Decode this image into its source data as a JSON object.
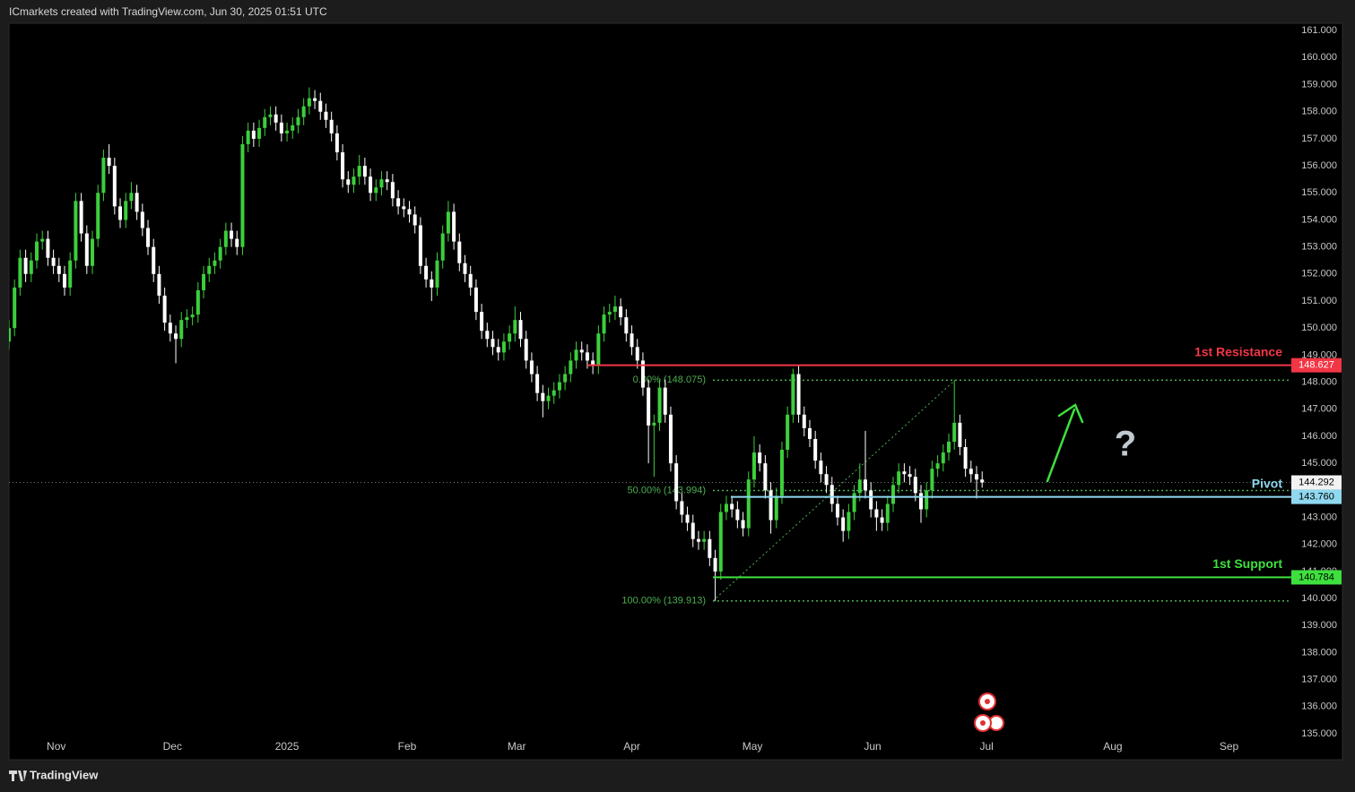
{
  "header": "ICmarkets created with TradingView.com, Jun 30, 2025 01:51 UTC",
  "footer": "TradingView",
  "chart_data": {
    "type": "candlestick",
    "up_color": "#3ccf3c",
    "down_color": "#ffffff",
    "grid": false,
    "x": [
      0,
      1,
      2,
      3,
      4,
      5,
      6,
      7,
      8,
      9,
      10,
      11,
      12,
      13,
      14,
      15,
      16,
      17,
      18,
      19,
      20,
      21,
      22,
      23,
      24,
      25,
      26,
      27,
      28,
      29,
      30,
      31,
      32,
      33,
      34,
      35,
      36,
      37,
      38,
      39,
      40,
      41,
      42,
      43,
      44,
      45,
      46,
      47,
      48,
      49,
      50,
      51,
      52,
      53,
      54,
      55,
      56,
      57,
      58,
      59,
      60,
      61,
      62,
      63,
      64,
      65,
      66,
      67,
      68,
      69,
      70,
      71,
      72,
      73,
      74,
      75,
      76,
      77,
      78,
      79,
      80,
      81,
      82,
      83,
      84,
      85,
      86,
      87,
      88,
      89,
      90,
      91,
      92,
      93,
      94,
      95,
      96,
      97,
      98,
      99,
      100,
      101,
      102,
      103,
      104,
      105,
      106,
      107,
      108,
      109,
      110,
      111,
      112,
      113,
      114,
      115,
      116,
      117,
      118,
      119,
      120,
      121,
      122,
      123,
      124,
      125,
      126,
      127,
      128,
      129,
      130,
      131,
      132,
      133,
      134,
      135,
      136,
      137,
      138,
      139,
      140,
      141,
      142,
      143,
      144,
      145,
      146,
      147,
      148,
      149,
      150,
      151,
      152,
      153,
      154,
      155,
      156,
      157,
      158,
      159,
      160,
      161,
      162,
      163,
      164,
      165,
      166,
      167,
      168,
      169,
      170,
      171,
      172,
      173,
      174,
      175
    ],
    "open": [
      149.5,
      150.0,
      151.5,
      152.6,
      152.0,
      152.5,
      153.2,
      153.3,
      152.6,
      152.3,
      152.0,
      151.5,
      152.5,
      154.7,
      153.5,
      152.3,
      153.3,
      155.0,
      156.3,
      156.0,
      154.5,
      154.0,
      154.7,
      155.0,
      154.3,
      153.7,
      153.0,
      152.0,
      151.2,
      150.2,
      149.8,
      149.6,
      150.3,
      150.4,
      150.5,
      151.4,
      152.0,
      152.3,
      152.5,
      153.0,
      153.6,
      153.3,
      153.0,
      156.8,
      157.3,
      157.0,
      157.4,
      157.8,
      157.9,
      157.6,
      157.2,
      157.3,
      157.5,
      157.8,
      158.2,
      158.5,
      158.4,
      158.0,
      157.7,
      157.2,
      156.5,
      155.5,
      155.3,
      155.6,
      156.0,
      155.6,
      155.0,
      155.2,
      155.5,
      155.4,
      154.8,
      154.5,
      154.4,
      154.2,
      153.8,
      152.3,
      151.8,
      151.5,
      152.5,
      153.5,
      154.3,
      153.2,
      152.4,
      152.0,
      151.5,
      150.6,
      149.9,
      149.6,
      149.3,
      149.1,
      149.5,
      149.8,
      150.3,
      149.6,
      148.8,
      148.3,
      147.6,
      147.3,
      147.5,
      147.7,
      148.0,
      148.3,
      148.8,
      149.2,
      149.1,
      148.8,
      148.6,
      149.8,
      150.5,
      150.6,
      150.8,
      150.4,
      149.8,
      149.3,
      148.8,
      147.8,
      146.4,
      146.5,
      147.8,
      146.8,
      145.0,
      143.6,
      143.1,
      142.8,
      142.2,
      142.1,
      142.2,
      141.5,
      141.0,
      143.2,
      143.5,
      143.3,
      142.9,
      142.6,
      144.4,
      145.4,
      145.0,
      144.0,
      142.9,
      143.8,
      145.5,
      146.8,
      148.3,
      146.8,
      146.3,
      145.9,
      145.1,
      144.6,
      144.2,
      143.5,
      143.0,
      142.5,
      143.2,
      143.9,
      144.4,
      144.0,
      143.3,
      143.0,
      142.8,
      143.5,
      144.2,
      144.7,
      144.6,
      144.5,
      143.9,
      143.3,
      144.0,
      144.8,
      145.0,
      145.4,
      145.8,
      146.5,
      145.6,
      144.8,
      144.6,
      144.4
    ],
    "high": [
      150.3,
      151.8,
      152.9,
      152.9,
      152.8,
      153.5,
      153.6,
      153.6,
      152.9,
      152.6,
      152.3,
      152.8,
      155.0,
      155.0,
      153.8,
      153.6,
      155.3,
      156.6,
      156.8,
      156.3,
      154.8,
      155.0,
      155.4,
      155.3,
      154.6,
      154.0,
      153.3,
      152.3,
      151.5,
      150.5,
      150.1,
      150.6,
      150.7,
      150.8,
      151.7,
      152.3,
      152.6,
      152.8,
      153.3,
      153.9,
      153.9,
      153.6,
      157.1,
      157.6,
      157.6,
      157.7,
      158.1,
      158.2,
      158.2,
      157.9,
      157.6,
      157.8,
      158.1,
      158.5,
      158.9,
      158.8,
      158.7,
      158.3,
      158.0,
      157.5,
      156.8,
      155.8,
      155.9,
      156.4,
      156.3,
      155.9,
      155.5,
      155.8,
      155.8,
      155.7,
      155.1,
      154.8,
      154.7,
      154.5,
      154.1,
      152.6,
      152.1,
      152.8,
      153.8,
      154.7,
      154.6,
      153.5,
      152.7,
      152.3,
      151.8,
      150.9,
      150.2,
      149.9,
      149.6,
      149.8,
      150.1,
      150.8,
      150.6,
      149.9,
      149.1,
      148.6,
      147.9,
      147.8,
      148.0,
      148.3,
      148.6,
      149.1,
      149.5,
      149.5,
      149.4,
      149.1,
      150.1,
      150.8,
      150.9,
      151.2,
      151.1,
      150.7,
      150.1,
      149.6,
      149.1,
      148.1,
      146.8,
      148.1,
      148.1,
      147.1,
      145.3,
      143.9,
      143.4,
      143.1,
      142.5,
      142.5,
      142.5,
      141.8,
      143.5,
      143.8,
      143.8,
      143.6,
      143.2,
      144.7,
      146.0,
      145.7,
      145.3,
      144.3,
      144.1,
      145.8,
      147.1,
      148.5,
      148.6,
      147.1,
      146.6,
      146.2,
      145.4,
      144.9,
      144.5,
      143.8,
      143.3,
      143.5,
      144.2,
      145.0,
      146.2,
      144.3,
      143.6,
      143.3,
      143.8,
      144.5,
      145.0,
      145.0,
      144.9,
      144.8,
      144.2,
      144.3,
      145.1,
      145.3,
      145.7,
      146.1,
      148.075,
      146.8,
      145.9,
      145.1,
      144.9,
      144.7
    ],
    "low": [
      149.2,
      149.7,
      151.2,
      151.7,
      151.7,
      152.2,
      152.9,
      152.3,
      152.0,
      151.7,
      151.2,
      151.2,
      152.2,
      153.2,
      152.0,
      152.0,
      153.0,
      154.7,
      155.7,
      154.2,
      153.7,
      153.7,
      154.4,
      154.0,
      153.4,
      152.7,
      151.7,
      150.9,
      149.9,
      149.5,
      148.7,
      149.3,
      150.0,
      150.1,
      150.2,
      151.1,
      151.7,
      152.0,
      152.2,
      152.7,
      153.0,
      152.7,
      152.7,
      156.5,
      156.7,
      156.7,
      157.1,
      157.5,
      157.3,
      156.9,
      156.9,
      157.0,
      157.2,
      157.5,
      157.9,
      158.1,
      157.7,
      157.4,
      156.9,
      156.2,
      155.2,
      155.0,
      155.0,
      155.3,
      155.3,
      154.7,
      154.7,
      154.9,
      155.1,
      154.5,
      154.2,
      154.1,
      153.9,
      153.5,
      152.0,
      151.5,
      151.0,
      151.2,
      152.2,
      153.2,
      152.9,
      152.1,
      151.7,
      151.2,
      150.3,
      149.6,
      149.3,
      149.0,
      148.8,
      148.8,
      149.2,
      149.5,
      149.3,
      148.5,
      148.0,
      147.3,
      146.7,
      147.0,
      147.2,
      147.4,
      147.7,
      148.0,
      148.5,
      148.8,
      148.5,
      148.3,
      148.3,
      149.5,
      150.2,
      150.3,
      150.1,
      149.5,
      149.0,
      148.5,
      147.5,
      145.0,
      144.5,
      146.2,
      146.5,
      144.7,
      143.3,
      142.8,
      142.5,
      141.9,
      141.8,
      141.8,
      141.2,
      139.913,
      140.7,
      142.9,
      143.0,
      142.6,
      142.3,
      142.3,
      144.1,
      144.7,
      143.7,
      142.4,
      142.6,
      143.5,
      145.2,
      146.5,
      146.5,
      146.0,
      145.6,
      144.8,
      144.3,
      143.9,
      143.2,
      142.7,
      142.1,
      142.2,
      142.9,
      143.6,
      143.7,
      143.0,
      142.5,
      142.5,
      142.5,
      143.2,
      143.9,
      144.3,
      144.2,
      143.6,
      142.8,
      143.0,
      143.7,
      144.5,
      144.7,
      145.1,
      145.5,
      145.3,
      144.5,
      144.3,
      143.7,
      144.1
    ],
    "close": [
      150.0,
      151.5,
      152.6,
      152.0,
      152.5,
      153.2,
      153.3,
      152.6,
      152.3,
      152.0,
      151.5,
      152.5,
      154.7,
      153.5,
      152.3,
      153.3,
      155.0,
      156.3,
      156.0,
      154.5,
      154.0,
      154.7,
      155.0,
      154.3,
      153.7,
      153.0,
      152.0,
      151.2,
      150.2,
      149.8,
      149.6,
      150.3,
      150.4,
      150.5,
      151.4,
      152.0,
      152.3,
      152.5,
      153.0,
      153.6,
      153.3,
      153.0,
      156.8,
      157.3,
      157.0,
      157.4,
      157.8,
      157.9,
      157.6,
      157.2,
      157.3,
      157.5,
      157.8,
      158.2,
      158.5,
      158.4,
      158.0,
      157.7,
      157.2,
      156.5,
      155.5,
      155.3,
      155.6,
      156.0,
      155.6,
      155.0,
      155.2,
      155.5,
      155.4,
      154.8,
      154.5,
      154.4,
      154.2,
      153.8,
      152.3,
      151.8,
      151.5,
      152.5,
      153.5,
      154.3,
      153.2,
      152.4,
      152.0,
      151.5,
      150.6,
      149.9,
      149.6,
      149.3,
      149.1,
      149.5,
      149.8,
      150.3,
      149.6,
      148.8,
      148.3,
      147.6,
      147.3,
      147.5,
      147.7,
      148.0,
      148.3,
      148.8,
      149.2,
      149.1,
      148.8,
      148.6,
      149.8,
      150.5,
      150.6,
      150.8,
      150.4,
      149.8,
      149.3,
      148.8,
      147.8,
      146.4,
      146.5,
      147.8,
      146.8,
      145.0,
      143.6,
      143.1,
      142.8,
      142.2,
      142.1,
      142.2,
      141.5,
      141.0,
      143.2,
      143.5,
      143.3,
      142.9,
      142.6,
      144.4,
      145.4,
      145.0,
      144.0,
      142.9,
      143.8,
      145.5,
      146.8,
      148.3,
      146.8,
      146.3,
      145.9,
      145.1,
      144.6,
      144.2,
      143.5,
      143.0,
      142.5,
      143.2,
      143.9,
      144.4,
      144.0,
      143.3,
      143.0,
      142.8,
      143.5,
      144.2,
      144.7,
      144.6,
      144.5,
      143.9,
      143.3,
      144.0,
      144.8,
      145.0,
      145.4,
      145.8,
      146.5,
      145.6,
      144.8,
      144.6,
      144.4,
      144.292
    ],
    "xlim": [
      0,
      230.6
    ],
    "xticks": [
      {
        "value": 8.5,
        "label": "Nov"
      },
      {
        "value": 29.4,
        "label": "Dec"
      },
      {
        "value": 50,
        "label": "2025"
      },
      {
        "value": 71.6,
        "label": "Feb"
      },
      {
        "value": 91.3,
        "label": "Mar"
      },
      {
        "value": 112,
        "label": "Apr"
      },
      {
        "value": 133.7,
        "label": "May"
      },
      {
        "value": 155.3,
        "label": "Jun"
      },
      {
        "value": 175.8,
        "label": "Jul"
      },
      {
        "value": 198.5,
        "label": "Aug"
      },
      {
        "value": 219.4,
        "label": "Sep"
      }
    ],
    "ylim": [
      134.04,
      161.27
    ],
    "yticks": [
      {
        "value": 135,
        "label": "135.000"
      },
      {
        "value": 136,
        "label": "136.000"
      },
      {
        "value": 137,
        "label": "137.000"
      },
      {
        "value": 138,
        "label": "138.000"
      },
      {
        "value": 139,
        "label": "139.000"
      },
      {
        "value": 140,
        "label": "140.000"
      },
      {
        "value": 141,
        "label": "141.000"
      },
      {
        "value": 142,
        "label": "142.000"
      },
      {
        "value": 143,
        "label": "143.000"
      },
      {
        "value": 144,
        "label": "144.000"
      },
      {
        "value": 145,
        "label": "145.000"
      },
      {
        "value": 146,
        "label": "146.000"
      },
      {
        "value": 147,
        "label": "147.000"
      },
      {
        "value": 148,
        "label": "148.000"
      },
      {
        "value": 149,
        "label": "149.000"
      },
      {
        "value": 150,
        "label": "150.000"
      },
      {
        "value": 151,
        "label": "151.000"
      },
      {
        "value": 152,
        "label": "152.000"
      },
      {
        "value": 153,
        "label": "153.000"
      },
      {
        "value": 154,
        "label": "154.000"
      },
      {
        "value": 155,
        "label": "155.000"
      },
      {
        "value": 156,
        "label": "156.000"
      },
      {
        "value": 157,
        "label": "157.000"
      },
      {
        "value": 158,
        "label": "158.000"
      },
      {
        "value": 159,
        "label": "159.000"
      },
      {
        "value": 160,
        "label": "160.000"
      },
      {
        "value": 161,
        "label": "161.000"
      }
    ],
    "last_price": {
      "value": 144.292,
      "label": "144.292"
    },
    "levels": [
      {
        "name": "1st Resistance",
        "price": {
          "value": 148.627,
          "label": "148.627"
        },
        "color": "#f23645"
      },
      {
        "name": "Pivot",
        "price": {
          "value": 143.76,
          "label": "143.760"
        },
        "color": "#8fd8ef"
      },
      {
        "name": "1st Support",
        "price": {
          "value": 140.784,
          "label": "140.784"
        },
        "color": "#3ee03e"
      }
    ],
    "fib": {
      "color": "#4caf50",
      "levels": [
        {
          "value": 148.075,
          "label": "0.00% (148.075)"
        },
        {
          "value": 143.994,
          "label": "50.00% (143.994)"
        },
        {
          "value": 139.913,
          "label": "100.00% (139.913)"
        }
      ]
    },
    "annotation": "?"
  }
}
